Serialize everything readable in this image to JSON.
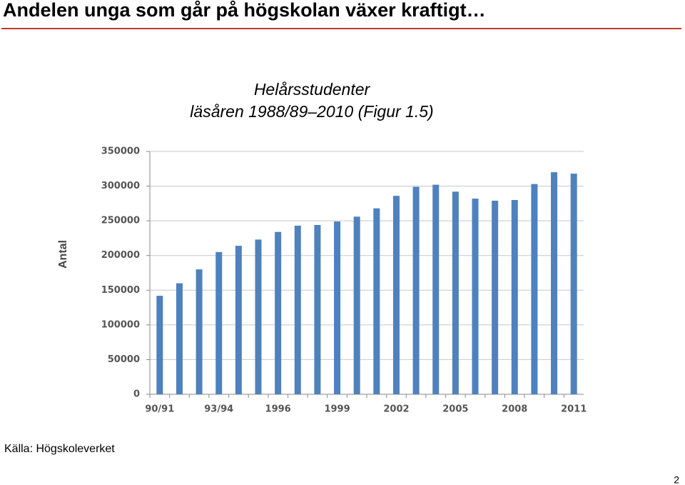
{
  "header": {
    "title": "Andelen unga som går på högskolan växer kraftigt…"
  },
  "chart_data": {
    "type": "bar",
    "title": "Helårsstudenter",
    "subtitle": "läsåren 1988/89–2010 (Figur 1.5)",
    "ylabel": "Antal",
    "categories": [
      "90/91",
      null,
      null,
      "93/94",
      null,
      null,
      "1996",
      null,
      null,
      "1999",
      null,
      null,
      "2002",
      null,
      null,
      "2005",
      null,
      null,
      "2008",
      null,
      null,
      "2011"
    ],
    "values": [
      142000,
      160000,
      180000,
      205000,
      214000,
      223000,
      234000,
      243000,
      244000,
      249000,
      256000,
      268000,
      286000,
      299000,
      302000,
      292000,
      282000,
      279000,
      280000,
      303000,
      320000,
      318000
    ],
    "color": "#4f81bd",
    "ylim": [
      0,
      350000
    ],
    "yticks": [
      0,
      50000,
      100000,
      150000,
      200000,
      250000,
      300000,
      350000
    ],
    "grid": true
  },
  "footer": {
    "source": "Källa: Högskoleverket",
    "page_number": "2"
  }
}
